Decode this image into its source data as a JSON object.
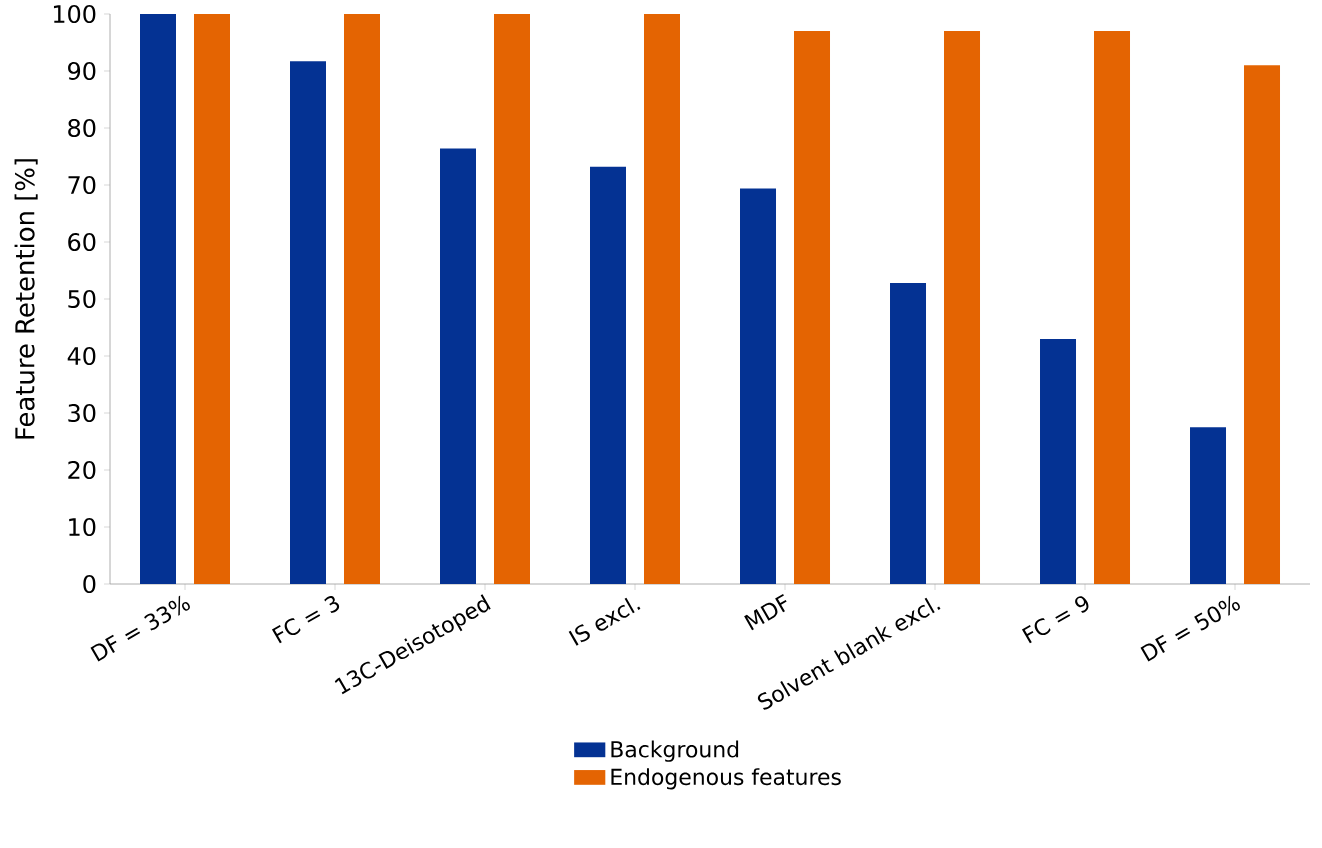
{
  "chart_data": {
    "type": "bar",
    "ylabel": "Feature Retention [%]",
    "categories": [
      "DF = 33%",
      "FC = 3",
      "13C-Deisotoped",
      "IS excl.",
      "MDF",
      "Solvent blank excl.",
      "FC = 9",
      "DF = 50%"
    ],
    "series": [
      {
        "name": "Background",
        "color": "#043293",
        "values": [
          100,
          91.7,
          76.4,
          73.2,
          69.4,
          52.8,
          43.0,
          27.5
        ]
      },
      {
        "name": "Endogenous features",
        "color": "#e46402",
        "values": [
          100,
          100,
          100,
          100,
          97,
          97,
          97,
          91
        ]
      }
    ],
    "ylim": [
      0,
      100
    ],
    "yticks": [
      0,
      10,
      20,
      30,
      40,
      50,
      60,
      70,
      80,
      90,
      100
    ],
    "grid": false,
    "legend": "bottom"
  }
}
